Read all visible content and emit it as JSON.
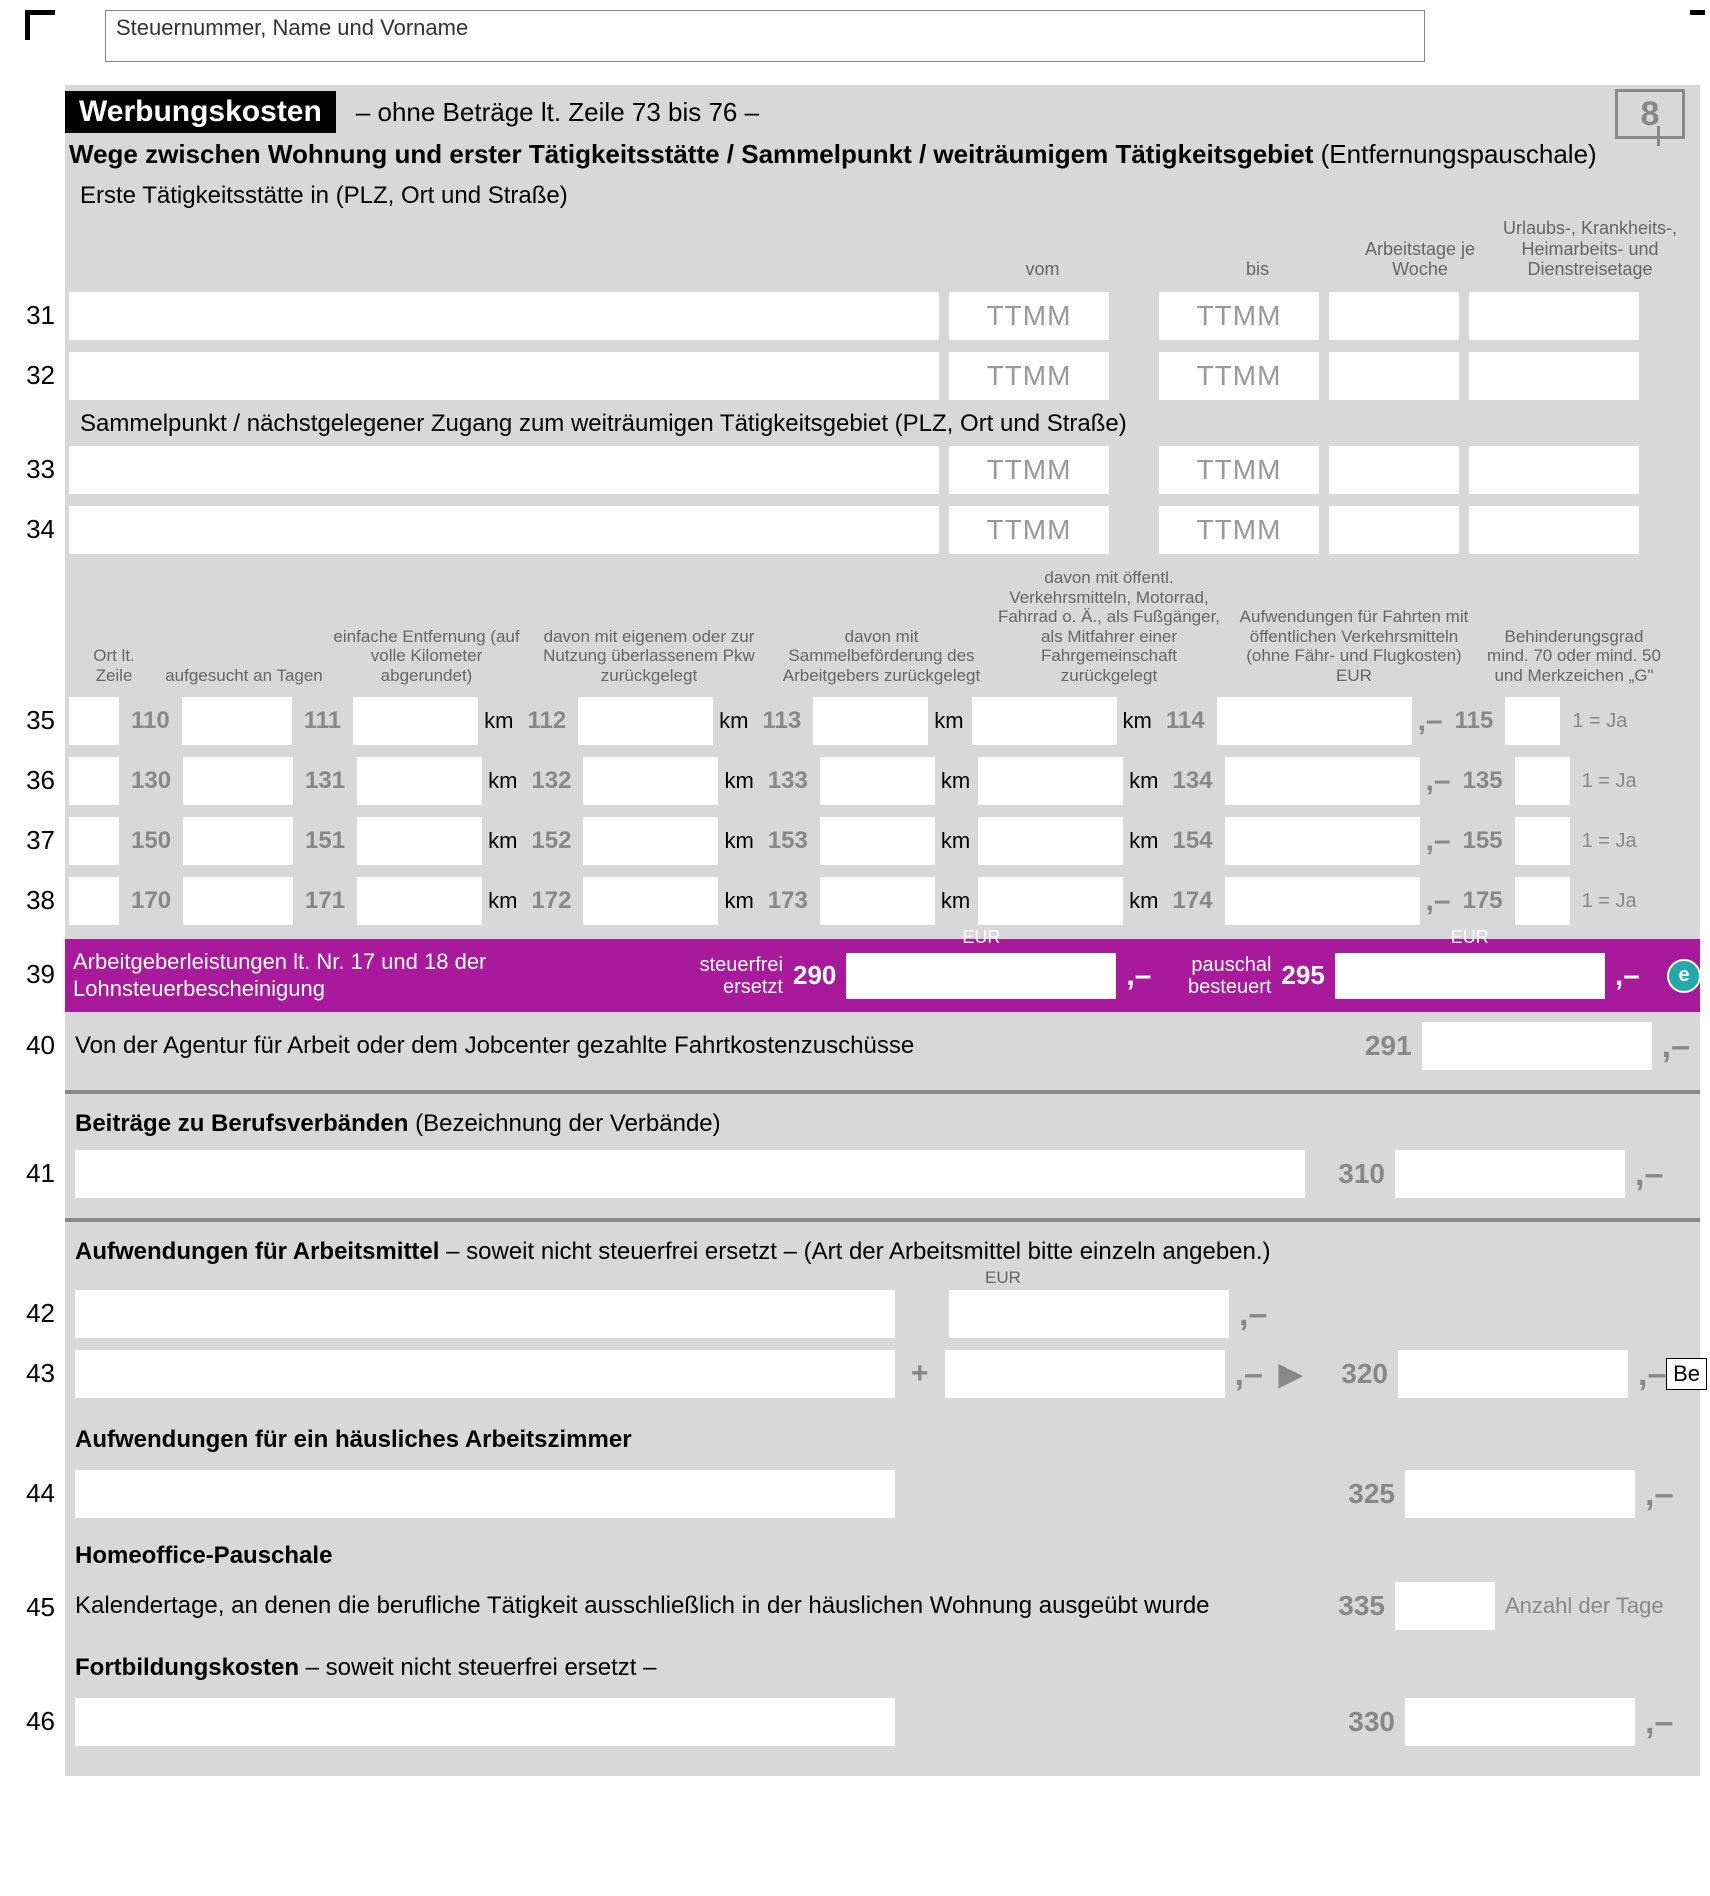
{
  "header": {
    "placeholder": "Steuernummer, Name und Vorname",
    "title_black": "Werbungskosten",
    "title_note": "– ohne Beträge lt. Zeile 73 bis 76 –",
    "page_number": "8"
  },
  "section1": {
    "heading_bold": "Wege zwischen Wohnung und erster Tätigkeitsstätte / Sammelpunkt / weiträumigem Tätigkeitsgebiet",
    "heading_normal": " (Entfernungspauschale)",
    "sub1": "Erste Tätigkeitsstätte in (PLZ, Ort und Straße)",
    "col_vom": "vom",
    "col_bis": "bis",
    "col_arbeitstage": "Arbeitstage je Woche",
    "col_urlaub": "Urlaubs-, Krankheits-, Heimarbeits- und Dienstreisetage",
    "ttmm": "TTMM",
    "sub2": "Sammelpunkt / nächstgelegener Zugang zum weiträumigen Tätigkeitsgebiet (PLZ, Ort und Straße)",
    "lines_a": [
      "31",
      "32"
    ],
    "lines_b": [
      "33",
      "34"
    ]
  },
  "grid": {
    "h1": "Ort lt. Zeile",
    "h2": "aufgesucht an Tagen",
    "h3": "einfache Entfernung (auf volle Kilometer abgerundet)",
    "h4": "davon mit eigenem oder zur Nutzung überlassenem Pkw zurückgelegt",
    "h5": "davon mit Sammelbeförderung des Arbeitgebers zurückgelegt",
    "h6": "davon mit öffentl. Verkehrsmitteln, Motorrad, Fahrrad o. Ä., als Fußgänger, als Mitfahrer einer Fahrgemeinschaft zurückgelegt",
    "h7": "Aufwendungen für Fahrten mit öffentlichen Verkehrsmitteln (ohne Fähr- und Flugkosten) EUR",
    "h8": "Behinderungsgrad mind. 70 oder mind. 50 und Merkzeichen „G\"",
    "km": "km",
    "ja": "1 = Ja",
    "comma_dash": ",–",
    "rows": [
      {
        "line": "35",
        "c1": "110",
        "c2": "111",
        "c3": "112",
        "c4": "113",
        "c5": "114",
        "c6": "115"
      },
      {
        "line": "36",
        "c1": "130",
        "c2": "131",
        "c3": "132",
        "c4": "133",
        "c5": "134",
        "c6": "135"
      },
      {
        "line": "37",
        "c1": "150",
        "c2": "151",
        "c3": "152",
        "c4": "153",
        "c5": "154",
        "c6": "155"
      },
      {
        "line": "38",
        "c1": "170",
        "c2": "171",
        "c3": "172",
        "c4": "173",
        "c5": "174",
        "c6": "175"
      }
    ]
  },
  "purple": {
    "line": "39",
    "text": "Arbeitgeberleistungen lt. Nr. 17 und 18 der Lohnsteuerbescheinigung",
    "l1": "steuerfrei ersetzt",
    "code1": "290",
    "l2": "pauschal besteuert",
    "code2": "295",
    "eur": "EUR",
    "comma_dash": ",–",
    "e": "e"
  },
  "row40": {
    "line": "40",
    "text": "Von der Agentur für Arbeit oder dem Jobcenter gezahlte Fahrtkostenzuschüsse",
    "code": "291"
  },
  "row41": {
    "line": "41",
    "heading_bold": "Beiträge zu Berufsverbänden",
    "heading_normal": " (Bezeichnung der Verbände)",
    "code": "310"
  },
  "arbeitsmittel": {
    "heading_bold": "Aufwendungen für Arbeitsmittel",
    "heading_normal": " – soweit nicht steuerfrei ersetzt – (Art der Arbeitsmittel bitte einzeln angeben.)",
    "eur": "EUR",
    "line42": "42",
    "line43": "43",
    "plus": "+",
    "arrow": "▶",
    "code": "320",
    "be": "Be"
  },
  "arbeitszimmer": {
    "heading": "Aufwendungen für ein häusliches Arbeitszimmer",
    "line": "44",
    "code": "325"
  },
  "homeoffice": {
    "heading": "Homeoffice-Pauschale",
    "text": "Kalendertage, an denen die berufliche Tätigkeit ausschließlich in der häuslichen Wohnung ausgeübt wurde",
    "line": "45",
    "code": "335",
    "suffix": "Anzahl der Tage"
  },
  "fortbildung": {
    "heading_bold": "Fortbildungskosten",
    "heading_normal": " – soweit nicht steuerfrei ersetzt –",
    "line": "46",
    "code": "330"
  },
  "comma_dash": ",–"
}
